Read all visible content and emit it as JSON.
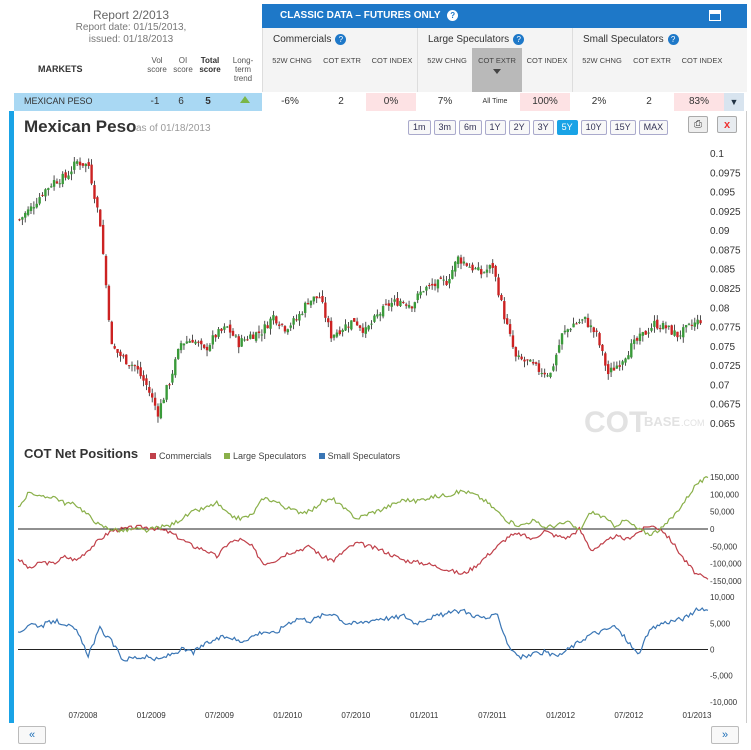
{
  "report": {
    "title": "Report 2/2013",
    "report_date": "Report date: 01/15/2013,",
    "issued": "issued: 01/18/2013"
  },
  "columns": {
    "markets": "MARKETS",
    "vol": "Vol score",
    "oi": "OI score",
    "total": "Total score",
    "trend": "Long-term trend"
  },
  "panel": {
    "title": "CLASSIC DATA – FUTURES ONLY",
    "groups": [
      {
        "name": "Commercials",
        "subs": [
          "52W CHNG",
          "COT EXTR",
          "COT INDEX"
        ]
      },
      {
        "name": "Large Speculators",
        "subs": [
          "52W CHNG",
          "COT EXTR",
          "COT INDEX"
        ]
      },
      {
        "name": "Small Speculators",
        "subs": [
          "52W CHNG",
          "COT EXTR",
          "COT INDEX"
        ]
      }
    ]
  },
  "row": {
    "market": "MEXICAN PESO",
    "vol": "-1",
    "oi": "6",
    "total": "5",
    "comm_chng": "-6%",
    "comm_extr": "2",
    "comm_index": "0%",
    "large_chng": "7%",
    "large_extr": "All Time",
    "large_index": "100%",
    "small_chng": "2%",
    "small_extr": "2",
    "small_index": "83%"
  },
  "chart_header": {
    "title": "Mexican Peso",
    "as_of": "as of 01/18/2013",
    "ranges": [
      "1m",
      "3m",
      "6m",
      "1Y",
      "2Y",
      "3Y",
      "5Y",
      "10Y",
      "15Y",
      "MAX"
    ],
    "active_range": "5Y"
  },
  "watermark": {
    "cot": "COT",
    "base": "BASE",
    "com": ".COM"
  },
  "net_positions": {
    "title": "COT Net Positions",
    "legend": [
      "Commercials",
      "Large Speculators",
      "Small Speculators"
    ]
  },
  "colors": {
    "commercials": "#c0404a",
    "large": "#8ab04a",
    "small": "#3a76b5",
    "up_candle": "#3a9a3a",
    "down_candle": "#cc2222",
    "accent": "#19a3e6"
  },
  "chart_data": [
    {
      "type": "candlestick",
      "title": "Mexican Peso",
      "ylim": [
        0.065,
        0.1
      ],
      "yticks": [
        0.1,
        0.0975,
        0.095,
        0.0925,
        0.09,
        0.0875,
        0.085,
        0.0825,
        0.08,
        0.0775,
        0.075,
        0.0725,
        0.07,
        0.0675,
        0.065
      ],
      "ytick_labels": [
        "0.1",
        "0.0975",
        "0.095",
        "0.0925",
        "0.09",
        "0.0875",
        "0.085",
        "0.0825",
        "0.08",
        "0.0775",
        "0.075",
        "0.0725",
        "0.07",
        "0.0675",
        "0.065"
      ],
      "x": [
        "2008-02",
        "2008-03",
        "2008-04",
        "2008-05",
        "2008-06",
        "2008-07",
        "2008-08",
        "2008-09",
        "2008-10",
        "2008-11",
        "2008-12",
        "2009-01",
        "2009-02",
        "2009-03",
        "2009-04",
        "2009-05",
        "2009-06",
        "2009-07",
        "2009-08",
        "2009-09",
        "2009-10",
        "2009-11",
        "2009-12",
        "2010-01",
        "2010-02",
        "2010-03",
        "2010-04",
        "2010-05",
        "2010-06",
        "2010-07",
        "2010-08",
        "2010-09",
        "2010-10",
        "2010-11",
        "2010-12",
        "2011-01",
        "2011-02",
        "2011-03",
        "2011-04",
        "2011-05",
        "2011-06",
        "2011-07",
        "2011-08",
        "2011-09",
        "2011-10",
        "2011-11",
        "2011-12",
        "2012-01",
        "2012-02",
        "2012-03",
        "2012-04",
        "2012-05",
        "2012-06",
        "2012-07",
        "2012-08",
        "2012-09",
        "2012-10",
        "2012-11",
        "2012-12",
        "2013-01"
      ],
      "close": [
        0.0915,
        0.093,
        0.095,
        0.0965,
        0.097,
        0.099,
        0.0985,
        0.091,
        0.075,
        0.0735,
        0.0725,
        0.07,
        0.0665,
        0.0705,
        0.0755,
        0.076,
        0.0745,
        0.0765,
        0.0775,
        0.0755,
        0.0765,
        0.077,
        0.079,
        0.0775,
        0.0785,
        0.081,
        0.0815,
        0.0765,
        0.0775,
        0.0785,
        0.077,
        0.079,
        0.0805,
        0.081,
        0.0805,
        0.0825,
        0.083,
        0.0835,
        0.0865,
        0.0855,
        0.0845,
        0.0855,
        0.079,
        0.0735,
        0.073,
        0.072,
        0.0715,
        0.0765,
        0.078,
        0.0785,
        0.0765,
        0.0715,
        0.073,
        0.075,
        0.0765,
        0.078,
        0.0775,
        0.0765,
        0.0775,
        0.0785
      ]
    },
    {
      "type": "line",
      "title": "COT Net Positions",
      "ylim": [
        -170000,
        170000
      ],
      "yticks": [
        150000,
        100000,
        50000,
        0,
        -50000,
        -100000,
        -150000
      ],
      "ytick_labels": [
        "150,000",
        "100,000",
        "50,000",
        "0",
        "-50,000",
        "-100,000",
        "-150,000"
      ],
      "xticks": [
        "07/2008",
        "01/2009",
        "07/2009",
        "01/2010",
        "07/2010",
        "01/2011",
        "07/2011",
        "01/2012",
        "07/2012",
        "01/2013"
      ],
      "x": [
        "2008-02",
        "2008-03",
        "2008-04",
        "2008-05",
        "2008-06",
        "2008-07",
        "2008-08",
        "2008-09",
        "2008-10",
        "2008-11",
        "2008-12",
        "2009-01",
        "2009-02",
        "2009-03",
        "2009-04",
        "2009-05",
        "2009-06",
        "2009-07",
        "2009-08",
        "2009-09",
        "2009-10",
        "2009-11",
        "2009-12",
        "2010-01",
        "2010-02",
        "2010-03",
        "2010-04",
        "2010-05",
        "2010-06",
        "2010-07",
        "2010-08",
        "2010-09",
        "2010-10",
        "2010-11",
        "2010-12",
        "2011-01",
        "2011-02",
        "2011-03",
        "2011-04",
        "2011-05",
        "2011-06",
        "2011-07",
        "2011-08",
        "2011-09",
        "2011-10",
        "2011-11",
        "2011-12",
        "2012-01",
        "2012-02",
        "2012-03",
        "2012-04",
        "2012-05",
        "2012-06",
        "2012-07",
        "2012-08",
        "2012-09",
        "2012-10",
        "2012-11",
        "2012-12",
        "2013-01"
      ],
      "series": [
        {
          "name": "Commercials",
          "values": [
            -85000,
            -115000,
            -95000,
            -100000,
            -80000,
            -90000,
            -60000,
            -30000,
            -5000,
            0,
            5000,
            5000,
            0,
            -10000,
            -30000,
            -50000,
            -60000,
            -80000,
            -40000,
            -30000,
            -50000,
            -100000,
            -90000,
            -70000,
            -60000,
            -50000,
            -80000,
            -90000,
            -60000,
            -40000,
            -50000,
            -60000,
            -75000,
            -90000,
            -95000,
            -100000,
            -110000,
            -120000,
            -130000,
            -110000,
            -80000,
            -50000,
            -20000,
            -15000,
            -30000,
            -5000,
            -20000,
            -25000,
            0,
            -60000,
            -45000,
            -20000,
            -30000,
            -10000,
            10000,
            0,
            -40000,
            -90000,
            -130000,
            -145000
          ]
        },
        {
          "name": "Large Speculators",
          "values": [
            60000,
            110000,
            90000,
            95000,
            75000,
            70000,
            40000,
            10000,
            0,
            -5000,
            0,
            -5000,
            5000,
            10000,
            30000,
            50000,
            60000,
            75000,
            40000,
            30000,
            40000,
            90000,
            80000,
            60000,
            50000,
            50000,
            80000,
            85000,
            55000,
            30000,
            45000,
            55000,
            70000,
            85000,
            80000,
            90000,
            95000,
            100000,
            110000,
            100000,
            80000,
            50000,
            20000,
            10000,
            25000,
            5000,
            10000,
            20000,
            -5000,
            50000,
            35000,
            10000,
            25000,
            0,
            -15000,
            0,
            35000,
            80000,
            130000,
            148000
          ]
        },
        {
          "name": "Small Speculators",
          "values": [
            3000,
            5000,
            4500,
            5500,
            5000,
            3500,
            -1000,
            4000,
            1500,
            -2000,
            -1500,
            -1500,
            -2000,
            -1000,
            0,
            -500,
            1000,
            2000,
            2500,
            1500,
            2500,
            3500,
            3000,
            5000,
            6000,
            5500,
            6500,
            7000,
            5000,
            5000,
            5500,
            6000,
            6000,
            6500,
            5000,
            6000,
            6500,
            7000,
            7500,
            6500,
            6000,
            6500,
            500,
            -1500,
            -1000,
            -500,
            -1500,
            0,
            1500,
            3000,
            3500,
            4500,
            2000,
            -1000,
            3500,
            5000,
            5500,
            6000,
            7500,
            7500
          ]
        }
      ]
    },
    {
      "type": "line",
      "title": "Small Speculators",
      "ylim": [
        -11000,
        11000
      ],
      "yticks": [
        10000,
        5000,
        0,
        -5000,
        -10000
      ],
      "ytick_labels": [
        "10,000",
        "5,000",
        "0",
        "-5,000",
        "-10,000"
      ]
    }
  ],
  "nav": {
    "prev": "«",
    "next": "»"
  }
}
